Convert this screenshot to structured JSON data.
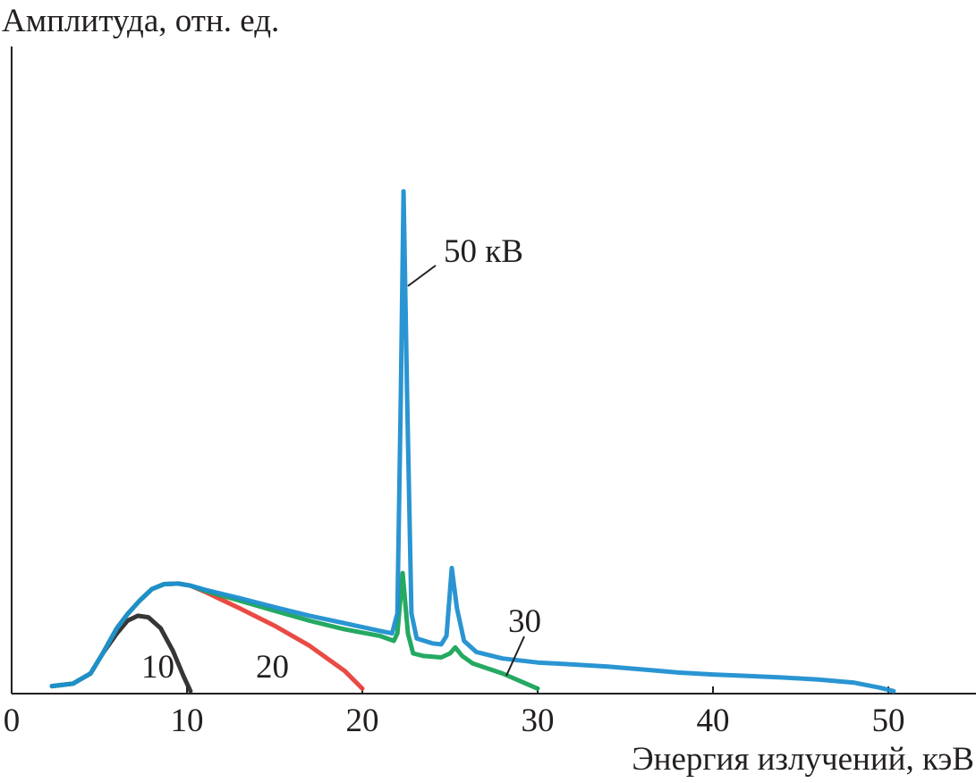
{
  "chart_data": {
    "type": "line",
    "title": "",
    "xlabel": "Энергия излучений, кэВ",
    "ylabel": "Амплитуда, отн. ед.",
    "xlim": [
      0,
      55
    ],
    "ylim": [
      0,
      100
    ],
    "x_ticks": [
      0,
      10,
      20,
      30,
      40,
      50
    ],
    "grid": false,
    "legend": "none",
    "series": [
      {
        "name": "10",
        "color": "#2b2b2b",
        "points": [
          [
            2.3,
            1.5
          ],
          [
            3.5,
            2
          ],
          [
            4.5,
            4
          ],
          [
            5.2,
            8
          ],
          [
            6,
            12
          ],
          [
            6.6,
            14.5
          ],
          [
            7.2,
            15.5
          ],
          [
            7.8,
            15.2
          ],
          [
            8.5,
            13
          ],
          [
            9.2,
            8.5
          ],
          [
            9.8,
            3.5
          ],
          [
            10.2,
            0.5
          ]
        ]
      },
      {
        "name": "20",
        "color": "#e8413a",
        "points": [
          [
            2.3,
            1.5
          ],
          [
            3.5,
            2
          ],
          [
            4.5,
            4
          ],
          [
            5.2,
            8
          ],
          [
            6,
            13
          ],
          [
            6.6,
            15.8
          ],
          [
            7.3,
            18.5
          ],
          [
            8,
            20.8
          ],
          [
            8.7,
            21.8
          ],
          [
            9.5,
            21.9
          ],
          [
            10.2,
            21.5
          ],
          [
            11,
            20.3
          ],
          [
            13,
            17
          ],
          [
            15,
            13.5
          ],
          [
            17,
            9.5
          ],
          [
            19,
            4.5
          ],
          [
            20,
            1
          ]
        ]
      },
      {
        "name": "30",
        "color": "#19a45a",
        "points": [
          [
            2.3,
            1.5
          ],
          [
            3.5,
            2
          ],
          [
            4.5,
            4
          ],
          [
            5.2,
            8
          ],
          [
            6,
            13
          ],
          [
            6.6,
            15.8
          ],
          [
            7.3,
            18.5
          ],
          [
            8,
            20.8
          ],
          [
            8.7,
            21.8
          ],
          [
            9.5,
            21.9
          ],
          [
            10.2,
            21.5
          ],
          [
            11,
            20.5
          ],
          [
            13,
            18.5
          ],
          [
            15,
            16.5
          ],
          [
            17,
            14.5
          ],
          [
            19,
            12.8
          ],
          [
            21,
            11.5
          ],
          [
            21.8,
            10.5
          ],
          [
            22,
            12
          ],
          [
            22.3,
            24
          ],
          [
            22.6,
            12
          ],
          [
            22.9,
            8
          ],
          [
            23.5,
            7.5
          ],
          [
            24.5,
            7.2
          ],
          [
            25,
            8
          ],
          [
            25.3,
            9.2
          ],
          [
            25.7,
            7.5
          ],
          [
            26.3,
            6
          ],
          [
            28,
            4
          ],
          [
            30,
            1
          ]
        ]
      },
      {
        "name": "50 кВ",
        "color": "#1f8fd0",
        "points": [
          [
            2.3,
            1.5
          ],
          [
            3.5,
            2
          ],
          [
            4.5,
            4
          ],
          [
            5.2,
            8
          ],
          [
            6,
            13
          ],
          [
            6.6,
            15.8
          ],
          [
            7.3,
            18.5
          ],
          [
            8,
            20.8
          ],
          [
            8.7,
            21.8
          ],
          [
            9.5,
            21.9
          ],
          [
            10.2,
            21.5
          ],
          [
            11,
            20.7
          ],
          [
            13,
            19
          ],
          [
            15,
            17.2
          ],
          [
            17,
            15.5
          ],
          [
            19,
            14
          ],
          [
            21,
            12.5
          ],
          [
            21.7,
            12
          ],
          [
            22,
            16
          ],
          [
            22.2,
            60
          ],
          [
            22.35,
            100
          ],
          [
            22.55,
            60
          ],
          [
            22.8,
            16
          ],
          [
            23.1,
            11
          ],
          [
            24,
            10
          ],
          [
            24.5,
            9.8
          ],
          [
            24.8,
            11.5
          ],
          [
            25.1,
            25
          ],
          [
            25.4,
            17
          ],
          [
            25.8,
            10.5
          ],
          [
            26.5,
            8.3
          ],
          [
            28,
            7
          ],
          [
            30,
            6.2
          ],
          [
            32,
            5.8
          ],
          [
            34,
            5.4
          ],
          [
            36,
            4.8
          ],
          [
            38,
            4.2
          ],
          [
            40,
            3.8
          ],
          [
            42,
            3.5
          ],
          [
            44,
            3.2
          ],
          [
            46,
            2.8
          ],
          [
            48,
            2.2
          ],
          [
            49.5,
            1.2
          ],
          [
            50.3,
            0.5
          ]
        ]
      }
    ]
  }
}
